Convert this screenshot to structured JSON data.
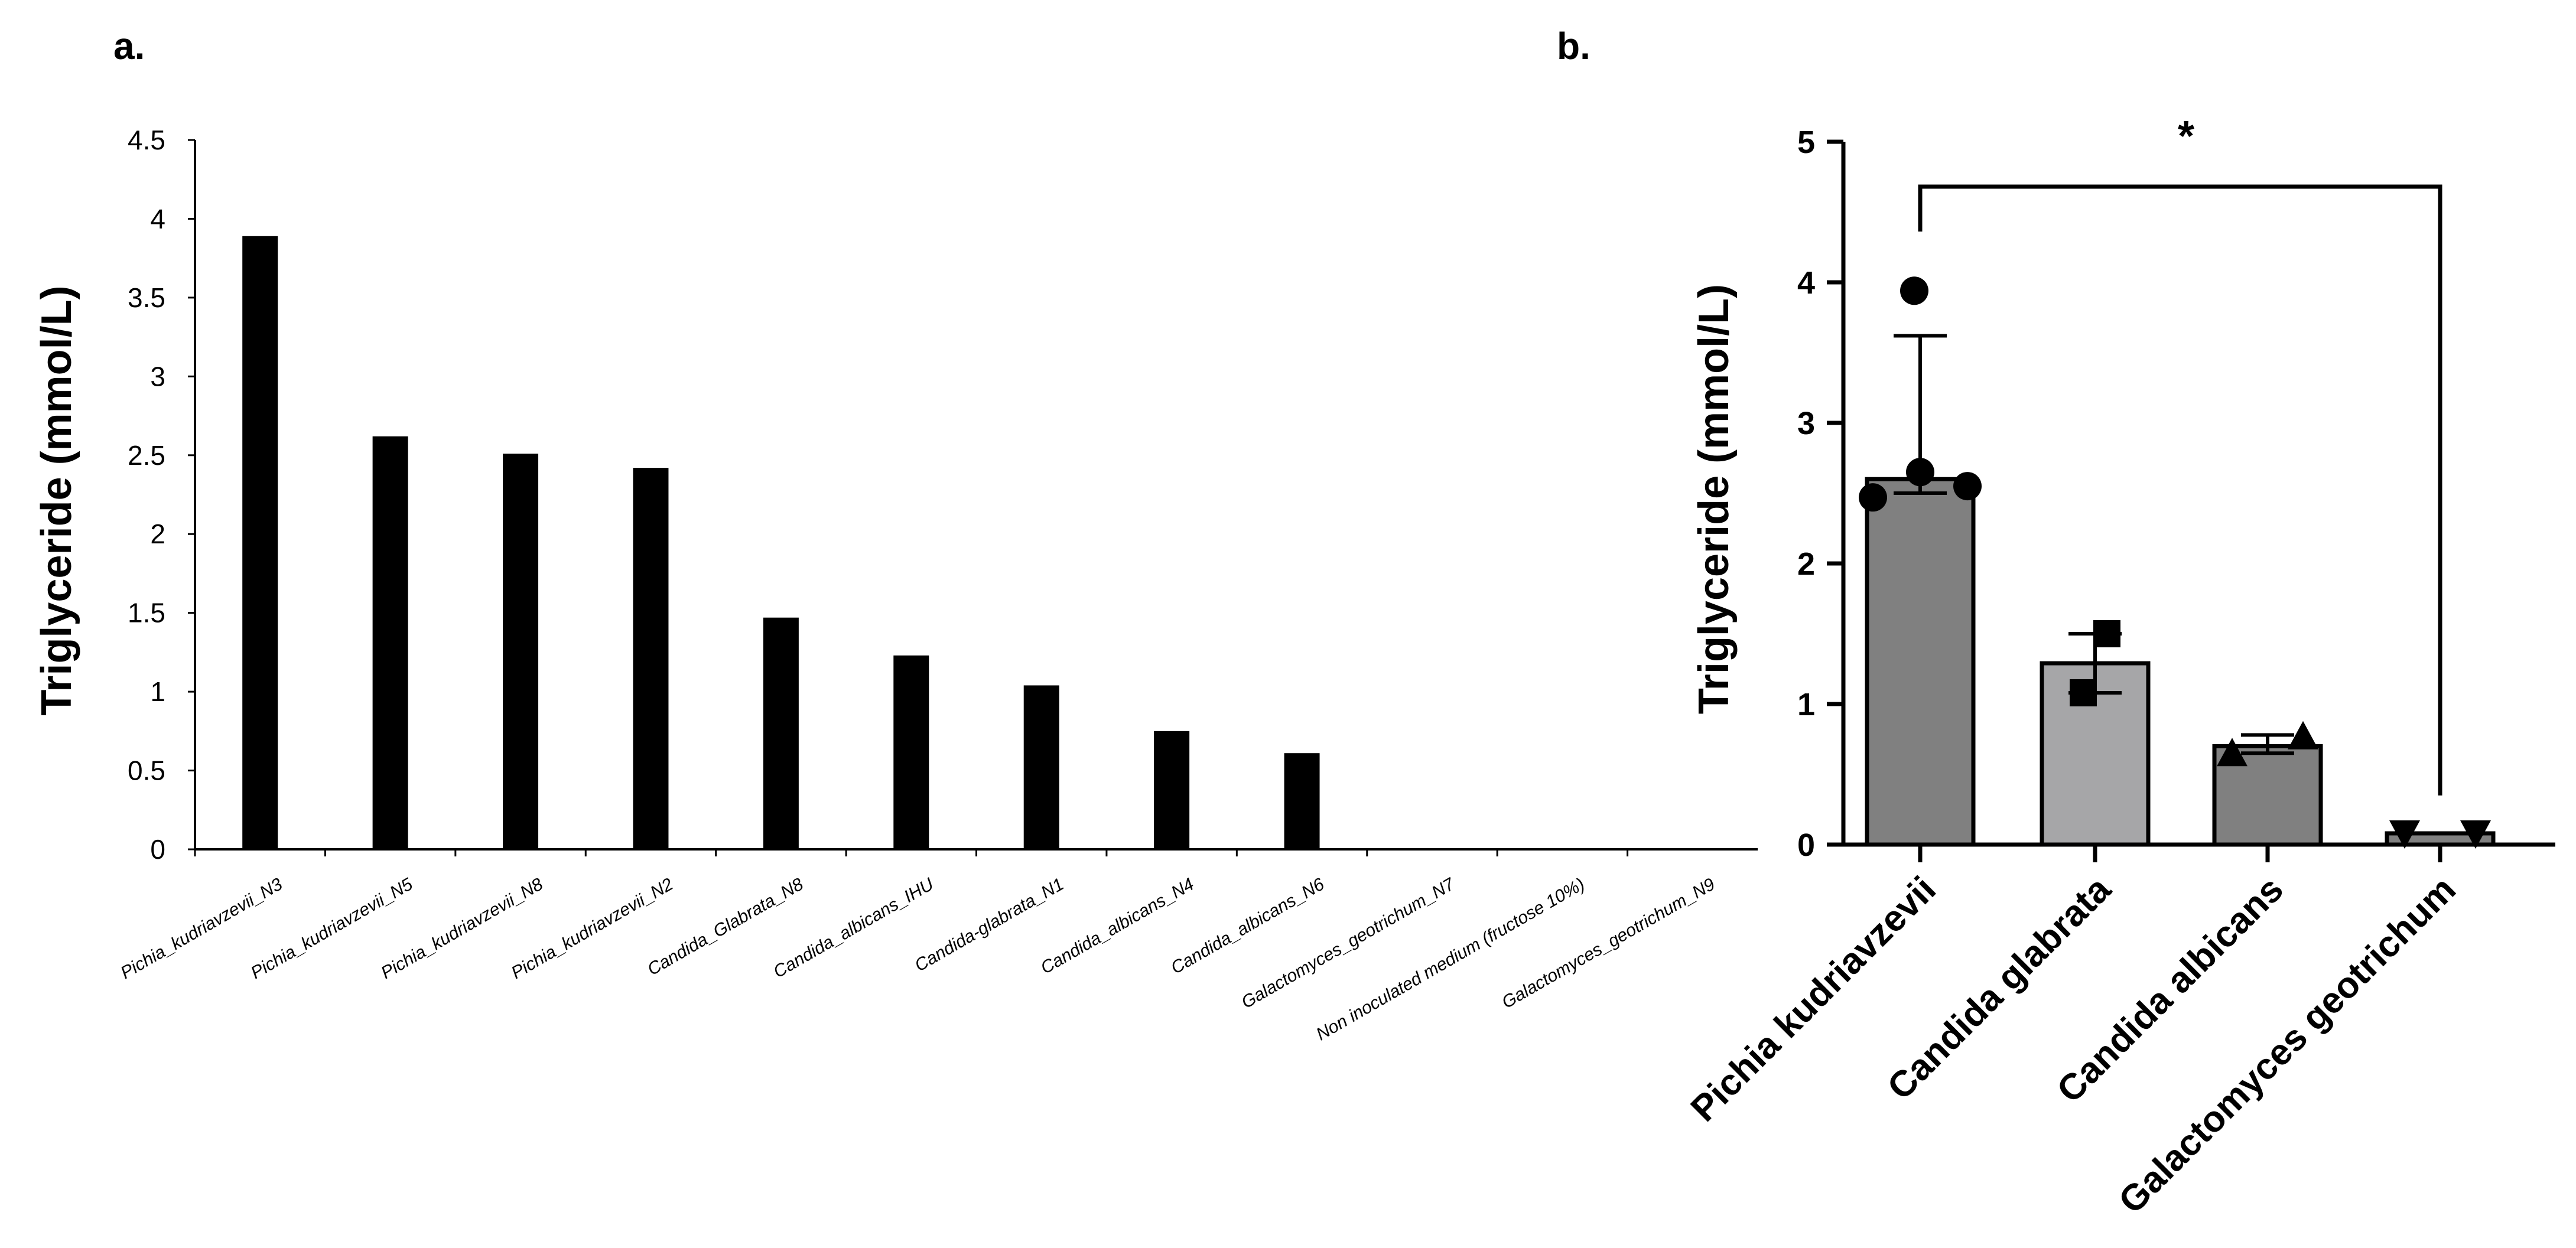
{
  "panel_a_label": "a.",
  "panel_b_label": "b.",
  "chart_data": [
    {
      "type": "bar",
      "title": "",
      "xlabel": "",
      "ylabel": "Triglyceride (mmol/L)",
      "ylim": [
        0,
        4.5
      ],
      "yticks": [
        0,
        0.5,
        1,
        1.5,
        2,
        2.5,
        3,
        3.5,
        4,
        4.5
      ],
      "ytick_labels": [
        "0",
        "0.5",
        "1",
        "1.5",
        "2",
        "2.5",
        "3",
        "3.5",
        "4",
        "4.5"
      ],
      "categories": [
        "Pichia_kudriavzevii_N3",
        "Pichia_kudriavzevii_N5",
        "Pichia_kudriavzevii_N8",
        "Pichia_kudriavzevii_N2",
        "Candida_Glabrata_N8",
        "Candida_albicans_IHU",
        "Candida-glabrata_N1",
        "Candida_albicans_N4",
        "Candida_albicans_N6",
        "Galactomyces_geotrichum_N7",
        "Non inoculated medium (fructose 10%)",
        "Galactomyces_geotrichum_N9"
      ],
      "values": [
        3.89,
        2.62,
        2.51,
        2.42,
        1.47,
        1.23,
        1.04,
        0.75,
        0.61,
        0,
        0,
        0
      ],
      "bar_color": "#000000"
    },
    {
      "type": "bar",
      "title": "",
      "xlabel": "",
      "ylabel": "Triglyceride (mmol/L)",
      "ylim": [
        0,
        5
      ],
      "yticks": [
        0,
        1,
        2,
        3,
        4,
        5
      ],
      "ytick_labels": [
        "0",
        "1",
        "2",
        "3",
        "4",
        "5"
      ],
      "categories": [
        "Pichia kudriavzevii",
        "Candida glabrata",
        "Candida albicans",
        "Galactomyces geotrichum"
      ],
      "values": [
        2.6,
        1.29,
        0.7,
        0.08
      ],
      "error_high": [
        3.62,
        1.5,
        0.78,
        0.08
      ],
      "error_low": [
        2.5,
        1.08,
        0.65,
        0.08
      ],
      "points": [
        {
          "marker": "circle",
          "values": [
            3.94,
            2.65,
            2.55,
            2.47
          ]
        },
        {
          "marker": "square",
          "values": [
            1.5,
            1.08
          ]
        },
        {
          "marker": "triangle-up",
          "values": [
            0.77,
            0.65
          ]
        },
        {
          "marker": "triangle-down",
          "values": [
            0.08,
            0.08
          ]
        }
      ],
      "bar_colors": [
        "#808080",
        "#a6a6a8",
        "#808080",
        "#808080"
      ],
      "significance": {
        "from": "Pichia kudriavzevii",
        "to": "Galactomyces geotrichum",
        "label": "*"
      }
    }
  ]
}
